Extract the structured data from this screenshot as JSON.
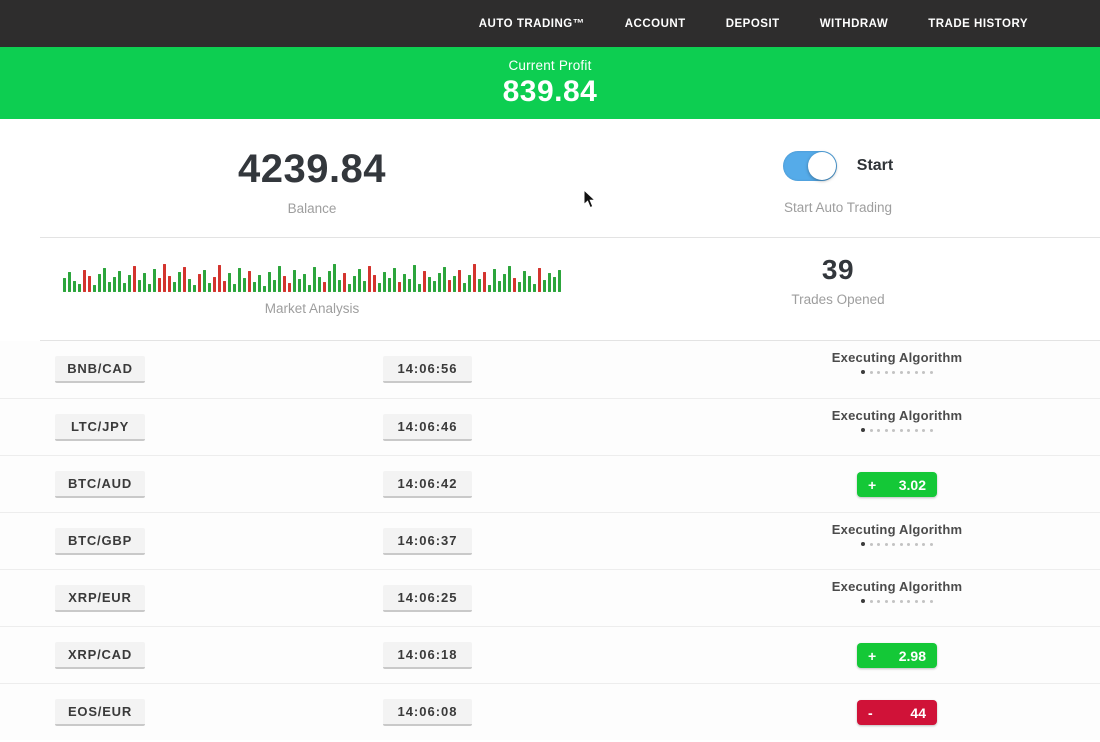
{
  "nav": {
    "items": [
      {
        "label": "AUTO TRADING™"
      },
      {
        "label": "ACCOUNT"
      },
      {
        "label": "DEPOSIT"
      },
      {
        "label": "WITHDRAW"
      },
      {
        "label": "TRADE HISTORY"
      }
    ]
  },
  "profit_banner": {
    "label": "Current Profit",
    "value": "839.84"
  },
  "stats": {
    "balance": {
      "value": "4239.84",
      "label": "Balance"
    },
    "auto_trading": {
      "toggle_label": "Start",
      "caption": "Start Auto Trading",
      "toggle_on": true
    },
    "market_analysis": {
      "label": "Market Analysis",
      "bar_colors": [
        "#2ca53c",
        "#d3342e"
      ],
      "bars": [
        [
          14,
          0
        ],
        [
          20,
          0
        ],
        [
          11,
          0
        ],
        [
          8,
          0
        ],
        [
          22,
          1
        ],
        [
          16,
          1
        ],
        [
          7,
          0
        ],
        [
          18,
          0
        ],
        [
          24,
          0
        ],
        [
          10,
          0
        ],
        [
          15,
          0
        ],
        [
          21,
          0
        ],
        [
          9,
          0
        ],
        [
          17,
          0
        ],
        [
          26,
          1
        ],
        [
          12,
          0
        ],
        [
          19,
          0
        ],
        [
          8,
          0
        ],
        [
          23,
          0
        ],
        [
          14,
          1
        ],
        [
          28,
          1
        ],
        [
          16,
          1
        ],
        [
          10,
          0
        ],
        [
          20,
          0
        ],
        [
          25,
          1
        ],
        [
          13,
          0
        ],
        [
          7,
          0
        ],
        [
          18,
          1
        ],
        [
          22,
          0
        ],
        [
          9,
          0
        ],
        [
          15,
          1
        ],
        [
          27,
          1
        ],
        [
          11,
          1
        ],
        [
          19,
          0
        ],
        [
          8,
          0
        ],
        [
          24,
          0
        ],
        [
          14,
          0
        ],
        [
          21,
          1
        ],
        [
          10,
          0
        ],
        [
          17,
          0
        ],
        [
          6,
          0
        ],
        [
          20,
          0
        ],
        [
          12,
          0
        ],
        [
          26,
          0
        ],
        [
          16,
          1
        ],
        [
          9,
          1
        ],
        [
          22,
          0
        ],
        [
          13,
          0
        ],
        [
          18,
          0
        ],
        [
          7,
          0
        ],
        [
          25,
          0
        ],
        [
          15,
          0
        ],
        [
          10,
          1
        ],
        [
          21,
          0
        ],
        [
          28,
          0
        ],
        [
          12,
          0
        ],
        [
          19,
          1
        ],
        [
          8,
          0
        ],
        [
          16,
          0
        ],
        [
          23,
          0
        ],
        [
          11,
          0
        ],
        [
          26,
          1
        ],
        [
          17,
          1
        ],
        [
          9,
          0
        ],
        [
          20,
          0
        ],
        [
          14,
          0
        ],
        [
          24,
          0
        ],
        [
          10,
          1
        ],
        [
          18,
          0
        ],
        [
          13,
          0
        ],
        [
          27,
          0
        ],
        [
          8,
          0
        ],
        [
          21,
          1
        ],
        [
          15,
          0
        ],
        [
          11,
          0
        ],
        [
          19,
          0
        ],
        [
          25,
          0
        ],
        [
          12,
          1
        ],
        [
          16,
          0
        ],
        [
          22,
          1
        ],
        [
          9,
          0
        ],
        [
          17,
          0
        ],
        [
          28,
          1
        ],
        [
          13,
          0
        ],
        [
          20,
          1
        ],
        [
          7,
          0
        ],
        [
          23,
          0
        ],
        [
          11,
          0
        ],
        [
          18,
          0
        ],
        [
          26,
          0
        ],
        [
          14,
          1
        ],
        [
          10,
          0
        ],
        [
          21,
          0
        ],
        [
          16,
          0
        ],
        [
          8,
          0
        ],
        [
          24,
          1
        ],
        [
          12,
          0
        ],
        [
          19,
          0
        ],
        [
          15,
          0
        ],
        [
          22,
          0
        ]
      ]
    },
    "trades_opened": {
      "value": "39",
      "label": "Trades Opened"
    }
  },
  "trades": {
    "executing_label": "Executing Algorithm",
    "executing_dots": 10,
    "rows": [
      {
        "pair": "BNB/CAD",
        "time": "14:06:56",
        "status": "executing"
      },
      {
        "pair": "LTC/JPY",
        "time": "14:06:46",
        "status": "executing"
      },
      {
        "pair": "BTC/AUD",
        "time": "14:06:42",
        "status": "profit",
        "sign": "+",
        "value": "3.02"
      },
      {
        "pair": "BTC/GBP",
        "time": "14:06:37",
        "status": "executing"
      },
      {
        "pair": "XRP/EUR",
        "time": "14:06:25",
        "status": "executing"
      },
      {
        "pair": "XRP/CAD",
        "time": "14:06:18",
        "status": "profit",
        "sign": "+",
        "value": "2.98"
      },
      {
        "pair": "EOS/EUR",
        "time": "14:06:08",
        "status": "loss",
        "sign": "-",
        "value": "44"
      }
    ]
  },
  "colors": {
    "nav_bg": "#2e2d2d",
    "banner_green": "#0dce51",
    "profit_green": "#14c837",
    "loss_red": "#d01238",
    "toggle_blue": "#55abe9"
  }
}
